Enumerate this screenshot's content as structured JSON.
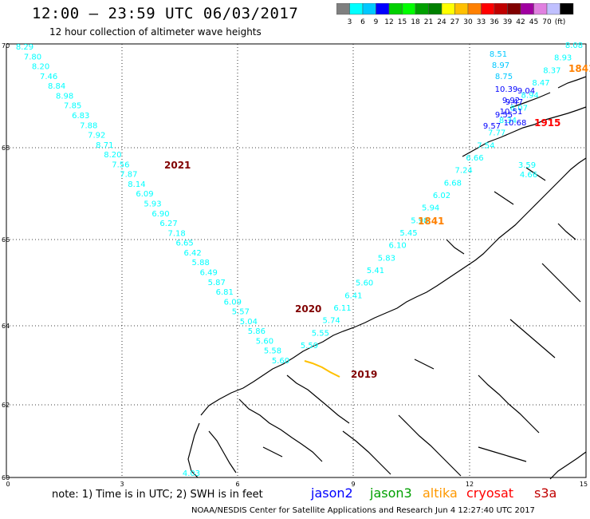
{
  "header": {
    "title": "12:00 — 23:59 UTC 06/03/2017",
    "subtitle": "12 hour collection of altimeter wave heights"
  },
  "colorbar": {
    "colors": [
      "#7f7f7f",
      "#00ffff",
      "#00c8ff",
      "#0000ff",
      "#00d000",
      "#00ff00",
      "#00a000",
      "#008000",
      "#ffff00",
      "#ffc000",
      "#ff8000",
      "#ff0000",
      "#c00000",
      "#800000",
      "#a000a0",
      "#e080e0",
      "#c0c0ff",
      "#000000"
    ],
    "labels": [
      "3",
      "6",
      "9",
      "12",
      "15",
      "18",
      "21",
      "24",
      "27",
      "30",
      "33",
      "36",
      "39",
      "42",
      "45",
      "70",
      "(ft)"
    ]
  },
  "axes": {
    "x_ticks": [
      "0",
      "3",
      "6",
      "9",
      "12",
      "15"
    ],
    "y_ticks": [
      "70",
      "68",
      "66",
      "64",
      "62",
      "60"
    ]
  },
  "tracks": [
    {
      "id": "2021",
      "label": "2021",
      "label_color": "#800000",
      "points": [
        {
          "v": "8.29",
          "c": "#00ffff"
        },
        {
          "v": "7.80",
          "c": "#00ffff"
        },
        {
          "v": "8.20",
          "c": "#00ffff"
        },
        {
          "v": "7.46",
          "c": "#00ffff"
        },
        {
          "v": "8.84",
          "c": "#00ffff"
        },
        {
          "v": "8.98",
          "c": "#00ffff"
        },
        {
          "v": "7.85",
          "c": "#00ffff"
        },
        {
          "v": "6.83",
          "c": "#00ffff"
        },
        {
          "v": "7.88",
          "c": "#00ffff"
        },
        {
          "v": "7.92",
          "c": "#00ffff"
        },
        {
          "v": "8.71",
          "c": "#00ffff"
        },
        {
          "v": "8.20",
          "c": "#00ffff"
        },
        {
          "v": "7.56",
          "c": "#00ffff"
        },
        {
          "v": "7.87",
          "c": "#00ffff"
        },
        {
          "v": "8.14",
          "c": "#00ffff"
        },
        {
          "v": "6.09",
          "c": "#00ffff"
        },
        {
          "v": "5.93",
          "c": "#00ffff"
        },
        {
          "v": "6.90",
          "c": "#00ffff"
        },
        {
          "v": "6.27",
          "c": "#00ffff"
        },
        {
          "v": "7.18",
          "c": "#00ffff"
        },
        {
          "v": "6.65",
          "c": "#00ffff"
        },
        {
          "v": "6.42",
          "c": "#00ffff"
        },
        {
          "v": "5.88",
          "c": "#00ffff"
        },
        {
          "v": "6.49",
          "c": "#00ffff"
        },
        {
          "v": "5.87",
          "c": "#00ffff"
        },
        {
          "v": "6.81",
          "c": "#00ffff"
        },
        {
          "v": "6.09",
          "c": "#00ffff"
        },
        {
          "v": "5.57",
          "c": "#00ffff"
        },
        {
          "v": "5.04",
          "c": "#00ffff"
        },
        {
          "v": "5.86",
          "c": "#00ffff"
        },
        {
          "v": "5.60",
          "c": "#00ffff"
        },
        {
          "v": "5.58",
          "c": "#00ffff"
        },
        {
          "v": "5.60",
          "c": "#00ffff"
        }
      ]
    },
    {
      "id": "2020",
      "label": "2020",
      "label_color": "#800000",
      "points": [
        {
          "v": "8.08",
          "c": "#00ffff"
        },
        {
          "v": "8.93",
          "c": "#00ffff"
        },
        {
          "v": "8.37",
          "c": "#00ffff"
        },
        {
          "v": "8.47",
          "c": "#00ffff"
        },
        {
          "v": "8.94",
          "c": "#00ffff"
        },
        {
          "v": "8.07",
          "c": "#00ffff"
        },
        {
          "v": "8.34",
          "c": "#00ffff"
        },
        {
          "v": "7.77",
          "c": "#00ffff"
        },
        {
          "v": "7.54",
          "c": "#00ffff"
        },
        {
          "v": "6.66",
          "c": "#00ffff"
        },
        {
          "v": "7.24",
          "c": "#00ffff"
        },
        {
          "v": "6.68",
          "c": "#00ffff"
        },
        {
          "v": "6.02",
          "c": "#00ffff"
        },
        {
          "v": "5.94",
          "c": "#00ffff"
        },
        {
          "v": "5.98",
          "c": "#00ffff"
        },
        {
          "v": "5.45",
          "c": "#00ffff"
        },
        {
          "v": "6.10",
          "c": "#00ffff"
        },
        {
          "v": "5.83",
          "c": "#00ffff"
        },
        {
          "v": "5.41",
          "c": "#00ffff"
        },
        {
          "v": "5.60",
          "c": "#00ffff"
        },
        {
          "v": "6.41",
          "c": "#00ffff"
        },
        {
          "v": "6.11",
          "c": "#00ffff"
        },
        {
          "v": "5.74",
          "c": "#00ffff"
        },
        {
          "v": "5.55",
          "c": "#00ffff"
        },
        {
          "v": "5.59",
          "c": "#00ffff"
        }
      ]
    },
    {
      "id": "1915",
      "label": "1915",
      "label_color": "#ff0000",
      "points": [
        {
          "v": "8.51",
          "c": "#00c8ff"
        },
        {
          "v": "8.97",
          "c": "#00c8ff"
        },
        {
          "v": "8.75",
          "c": "#00c8ff"
        },
        {
          "v": "10.39",
          "c": "#0000ff"
        },
        {
          "v": "9.04",
          "c": "#0000ff"
        },
        {
          "v": "9.92",
          "c": "#0000ff"
        },
        {
          "v": "9.47",
          "c": "#0000ff"
        },
        {
          "v": "10.51",
          "c": "#0000ff"
        },
        {
          "v": "9.55",
          "c": "#0000ff"
        },
        {
          "v": "10.68",
          "c": "#0000ff"
        },
        {
          "v": "9.57",
          "c": "#0000ff"
        }
      ]
    },
    {
      "id": "1841",
      "label": "1841",
      "label_color": "#ff8000",
      "points": [
        {
          "v": "3.59",
          "c": "#00ffff"
        },
        {
          "v": "4.66",
          "c": "#00ffff"
        }
      ]
    },
    {
      "id": "1841b",
      "label": "1841",
      "label_color": "#ff8000",
      "points": []
    },
    {
      "id": "2019",
      "label": "2019",
      "label_color": "#800000",
      "points": []
    },
    {
      "id": "south",
      "label": "",
      "label_color": "#00ffff",
      "points": [
        {
          "v": "4.03",
          "c": "#00ffff"
        }
      ]
    }
  ],
  "footer": {
    "note": "note:  1) Time is in UTC;  2) SWH is in feet",
    "legend": [
      {
        "name": "jason2",
        "color": "#0000ff"
      },
      {
        "name": "jason3",
        "color": "#00a000"
      },
      {
        "name": "altika",
        "color": "#ff9900"
      },
      {
        "name": "cryosat",
        "color": "#ff0000"
      },
      {
        "name": "s3a",
        "color": "#c00000"
      }
    ],
    "credit": "NOAA/NESDIS Center for Satellite Applications and Research     Jun  4 12:27:40 UTC 2017"
  }
}
